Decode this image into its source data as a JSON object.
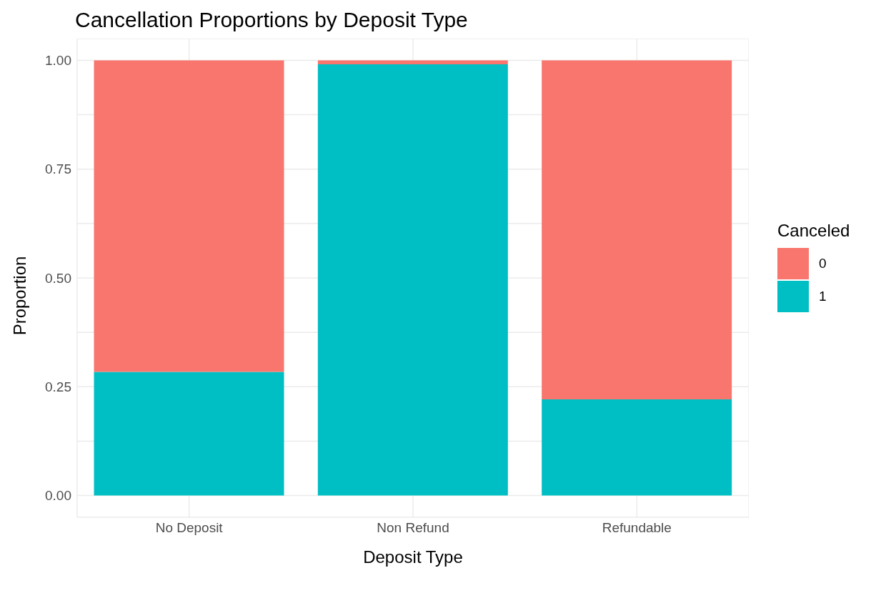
{
  "chart_data": {
    "type": "bar",
    "title": "Cancellation Proportions by Deposit Type",
    "xlabel": "Deposit Type",
    "ylabel": "Proportion",
    "legend_title": "Canceled",
    "categories": [
      "No Deposit",
      "Non Refund",
      "Refundable"
    ],
    "series": [
      {
        "name": "1",
        "color": "#00bfc4",
        "values": [
          0.284,
          0.991,
          0.221
        ]
      },
      {
        "name": "0",
        "color": "#f8766d",
        "values": [
          0.716,
          0.009,
          0.779
        ]
      }
    ],
    "stacked": true,
    "ylim": [
      -0.05,
      1.05
    ],
    "yticks": [
      {
        "value": 0,
        "label": "0.00"
      },
      {
        "value": 0.125,
        "label": null
      },
      {
        "value": 0.25,
        "label": "0.25"
      },
      {
        "value": 0.375,
        "label": null
      },
      {
        "value": 0.5,
        "label": "0.50"
      },
      {
        "value": 0.625,
        "label": null
      },
      {
        "value": 0.75,
        "label": "0.75"
      },
      {
        "value": 0.875,
        "label": null
      },
      {
        "value": 1,
        "label": "1.00"
      }
    ],
    "grid": true,
    "legend": "right"
  }
}
